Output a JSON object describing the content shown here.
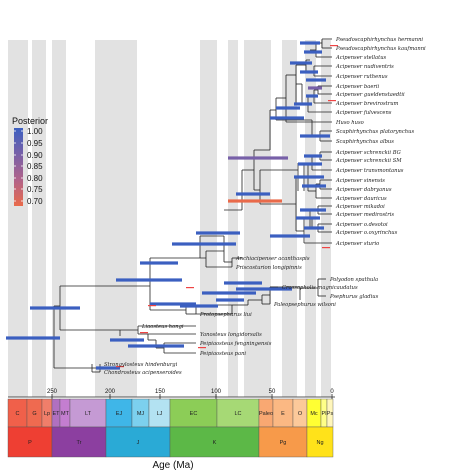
{
  "legend": {
    "title": "Posterior",
    "ticks": [
      "1.00",
      "0.95",
      "0.90",
      "0.85",
      "0.80",
      "0.75",
      "0.70"
    ],
    "colors": [
      "#3b5fc0",
      "#7760a8",
      "#b0628a",
      "#e96a4a"
    ]
  },
  "axis": {
    "title": "Age (Ma)",
    "ticks": [
      "250",
      "200",
      "150",
      "100",
      "50",
      "0"
    ]
  },
  "timescale": {
    "epochs": [
      {
        "label": "C",
        "color": "#f0604a"
      },
      {
        "label": "G",
        "color": "#ef6a50"
      },
      {
        "label": "Lp",
        "color": "#f07e6a"
      },
      {
        "label": "ET",
        "color": "#b070c0"
      },
      {
        "label": "MT",
        "color": "#c47ed0"
      },
      {
        "label": "LT",
        "color": "#c59ad4"
      },
      {
        "label": "EJ",
        "color": "#3fb6e8"
      },
      {
        "label": "MJ",
        "color": "#7cd0ee"
      },
      {
        "label": "LJ",
        "color": "#b3e2f2"
      },
      {
        "label": "EC",
        "color": "#8ccd57"
      },
      {
        "label": "LC",
        "color": "#a6d975"
      },
      {
        "label": "Paleo",
        "color": "#f9a872"
      },
      {
        "label": "E",
        "color": "#fbb883"
      },
      {
        "label": "O",
        "color": "#fcc99a"
      },
      {
        "label": "Mc",
        "color": "#ffff33"
      },
      {
        "label": "Pl",
        "color": "#ffff88"
      },
      {
        "label": "Ps",
        "color": "#fff6bb"
      }
    ],
    "periods": [
      {
        "label": "P",
        "color": "#ee3f33"
      },
      {
        "label": "Tr",
        "color": "#8c3fa0"
      },
      {
        "label": "J",
        "color": "#2aaad6"
      },
      {
        "label": "K",
        "color": "#5cb847"
      },
      {
        "label": "Pg",
        "color": "#f79a4a"
      },
      {
        "label": "Ng",
        "color": "#ffe21a"
      }
    ]
  },
  "taxa": [
    "Pseudoscaphirhynchus hermanni",
    "Pseudoscaphirhynchus kaufmanni",
    "Acipenser stellatus",
    "Acipenser nudiventris",
    "Acipenser ruthenus",
    "Acipenser baerii",
    "Acipenser gueldenstaedtii",
    "Acipenser brevirostrum",
    "Acipenser fulvescens",
    "Huso huso",
    "Scaphirhynchus platorynchus",
    "Scaphirhynchus albus",
    "Acipenser schrenckii BG",
    "Acipenser schrenckii SM",
    "Acipenser transmontanus",
    "Acipenser sinensis",
    "Acipenser dabryanus",
    "Acipenser dauricus",
    "Acipenser mikadoi",
    "Acipenser medirostris",
    "Acipenser o.desotoi",
    "Acipenser o.oxyrinchus",
    "Acipenser sturio",
    "Anchiacipenser acanthaspis",
    "Priscosturion longipinnis",
    "Polyodon spathula",
    "Crossopholis magnicaudatus",
    "Psephurus gladius",
    "Paleopsephurus wilsoni",
    "Protopsephurus liui",
    "Liaosteus hongi",
    "Yanosteus longidorsalis",
    "Peipiaosteus fengningensis",
    "Peipiaosteus pani",
    "Strongylosteus hindenburgi",
    "Chondrosteus acipenseroides"
  ]
}
